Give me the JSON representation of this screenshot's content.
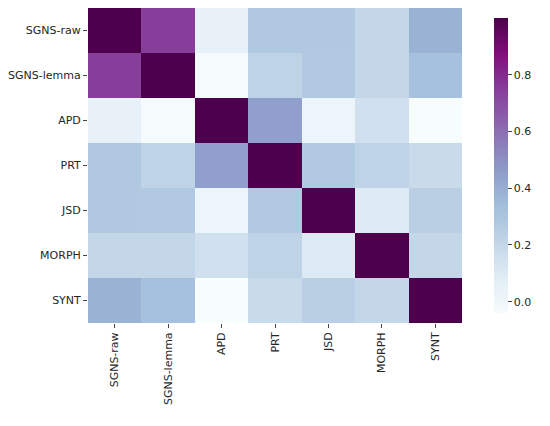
{
  "chart_data": {
    "type": "heatmap",
    "x": [
      "SGNS-raw",
      "SGNS-lemma",
      "APD",
      "PRT",
      "JSD",
      "MORPH",
      "SYNT"
    ],
    "y": [
      "SGNS-raw",
      "SGNS-lemma",
      "APD",
      "PRT",
      "JSD",
      "MORPH",
      "SYNT"
    ],
    "z": [
      [
        1.0,
        0.75,
        0.05,
        0.28,
        0.28,
        0.2,
        0.38
      ],
      [
        0.75,
        1.0,
        -0.03,
        0.22,
        0.27,
        0.2,
        0.32
      ],
      [
        0.05,
        -0.03,
        1.0,
        0.45,
        0.02,
        0.15,
        -0.04
      ],
      [
        0.28,
        0.22,
        0.45,
        1.0,
        0.27,
        0.22,
        0.18
      ],
      [
        0.28,
        0.27,
        0.02,
        0.27,
        1.0,
        0.1,
        0.24
      ],
      [
        0.2,
        0.2,
        0.15,
        0.22,
        0.1,
        1.0,
        0.2
      ],
      [
        0.38,
        0.32,
        -0.04,
        0.18,
        0.24,
        0.2,
        1.0
      ]
    ],
    "colorbar": {
      "range": [
        -0.04,
        1.0
      ],
      "ticks": [
        {
          "value": 0,
          "label": "0.0"
        },
        {
          "value": 0.2,
          "label": "0.2"
        },
        {
          "value": 0.4,
          "label": "0.4"
        },
        {
          "value": 0.6,
          "label": "0.6"
        },
        {
          "value": 0.8,
          "label": "0.8"
        }
      ]
    },
    "grid": false
  }
}
